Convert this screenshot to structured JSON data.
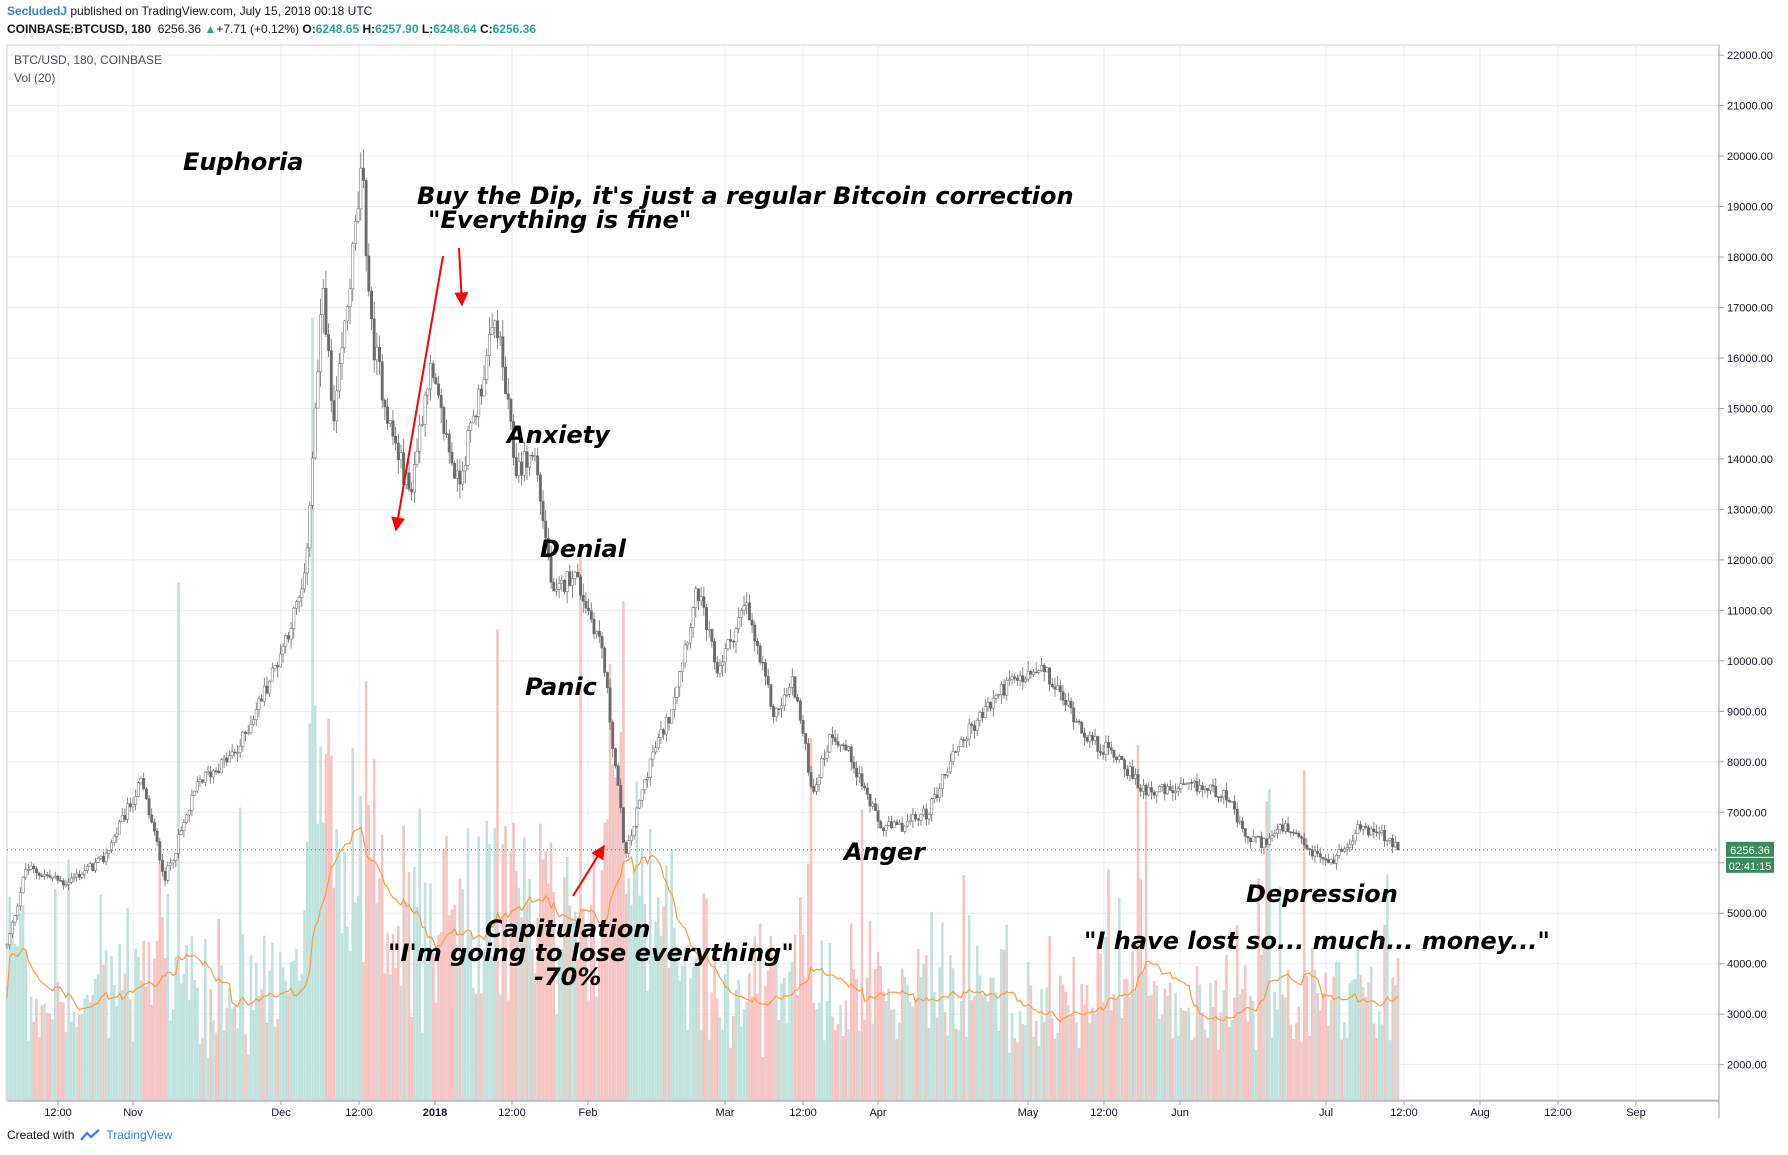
{
  "header": {
    "author": "SecludedJ",
    "published_text": "published on TradingView.com, July 15, 2018 00:18 UTC",
    "symbol": "COINBASE:BTCUSD, 180",
    "last": "6256.36",
    "change": "+7.71 (+0.12%)",
    "o_label": "O:",
    "o_value": "6248.65",
    "h_label": "H:",
    "h_value": "6257.90",
    "l_label": "L:",
    "l_value": "6248.64",
    "c_label": "C:",
    "c_value": "6256.36"
  },
  "legend": {
    "title": "BTC/USD, 180, COINBASE",
    "volume": "Vol (20)"
  },
  "footer": {
    "created_with": "Created with",
    "brand": "TradingView"
  },
  "colors": {
    "up": "#26a69a",
    "down": "#ef5350",
    "candle": "#6b6b6b",
    "volume_ma": "#ff9a3c",
    "arrow": "#ff0000",
    "grid": "#e9eef2",
    "price_badge": "#3a8a5c"
  },
  "chart_data": {
    "type": "candlestick",
    "title": "BTC/USD, 180, COINBASE",
    "y_unit": "USD",
    "ylim": [
      1300,
      22200
    ],
    "y_ticks": [
      "22000.00",
      "21000.00",
      "20000.00",
      "19000.00",
      "18000.00",
      "17000.00",
      "16000.00",
      "15000.00",
      "14000.00",
      "13000.00",
      "12000.00",
      "11000.00",
      "10000.00",
      "9000.00",
      "8000.00",
      "7000.00",
      "6000.00",
      "5000.00",
      "4000.00",
      "3000.00",
      "2000.00"
    ],
    "x_ticks": [
      "12:00",
      "Nov",
      "Dec",
      "12:00",
      "2018",
      "12:00",
      "Feb",
      "Mar",
      "12:00",
      "Apr",
      "May",
      "12:00",
      "Jun",
      "Jul",
      "12:00",
      "Aug",
      "12:00",
      "Sep"
    ],
    "last_price": "6256.36",
    "countdown": "02:41:15",
    "price_path": [
      {
        "t": 0,
        "p": 4350
      },
      {
        "t": 2,
        "p": 5900
      },
      {
        "t": 6,
        "p": 5600
      },
      {
        "t": 10,
        "p": 6050
      },
      {
        "t": 14,
        "p": 7600
      },
      {
        "t": 16.5,
        "p": 5700
      },
      {
        "t": 20,
        "p": 7600
      },
      {
        "t": 24,
        "p": 8200
      },
      {
        "t": 28,
        "p": 9900
      },
      {
        "t": 31,
        "p": 11500
      },
      {
        "t": 33,
        "p": 17500
      },
      {
        "t": 34,
        "p": 14500
      },
      {
        "t": 37,
        "p": 19700
      },
      {
        "t": 38,
        "p": 16500
      },
      {
        "t": 40,
        "p": 14600
      },
      {
        "t": 42,
        "p": 13300
      },
      {
        "t": 44,
        "p": 15800
      },
      {
        "t": 47,
        "p": 13500
      },
      {
        "t": 49,
        "p": 15100
      },
      {
        "t": 51,
        "p": 16800
      },
      {
        "t": 53,
        "p": 13800
      },
      {
        "t": 55,
        "p": 14100
      },
      {
        "t": 57,
        "p": 11200
      },
      {
        "t": 59,
        "p": 11800
      },
      {
        "t": 62,
        "p": 10300
      },
      {
        "t": 64.5,
        "p": 6100
      },
      {
        "t": 67,
        "p": 8000
      },
      {
        "t": 69,
        "p": 8900
      },
      {
        "t": 72,
        "p": 11400
      },
      {
        "t": 74,
        "p": 9800
      },
      {
        "t": 77,
        "p": 11100
      },
      {
        "t": 80,
        "p": 8900
      },
      {
        "t": 82,
        "p": 9600
      },
      {
        "t": 84,
        "p": 7400
      },
      {
        "t": 86,
        "p": 8600
      },
      {
        "t": 88,
        "p": 8100
      },
      {
        "t": 91,
        "p": 6700
      },
      {
        "t": 93,
        "p": 6700
      },
      {
        "t": 96,
        "p": 7000
      },
      {
        "t": 99,
        "p": 8300
      },
      {
        "t": 104,
        "p": 9500
      },
      {
        "t": 108,
        "p": 9800
      },
      {
        "t": 111,
        "p": 9000
      },
      {
        "t": 113,
        "p": 8400
      },
      {
        "t": 116,
        "p": 8100
      },
      {
        "t": 118,
        "p": 7500
      },
      {
        "t": 121,
        "p": 7400
      },
      {
        "t": 124,
        "p": 7500
      },
      {
        "t": 127,
        "p": 7400
      },
      {
        "t": 129,
        "p": 6500
      },
      {
        "t": 131,
        "p": 6400
      },
      {
        "t": 133,
        "p": 6700
      },
      {
        "t": 136,
        "p": 6200
      },
      {
        "t": 138,
        "p": 6000
      },
      {
        "t": 141,
        "p": 6700
      },
      {
        "t": 143,
        "p": 6600
      },
      {
        "t": 145,
        "p": 6256
      }
    ],
    "annotations": [
      {
        "text": "Euphoria"
      },
      {
        "text": "Buy the Dip, it's just a regular Bitcoin correction"
      },
      {
        "text": "\"Everything is fine\""
      },
      {
        "text": "Anxiety"
      },
      {
        "text": "Denial"
      },
      {
        "text": "Panic"
      },
      {
        "text": "Capitulation"
      },
      {
        "text": "\"I'm going to lose everything\""
      },
      {
        "text": "-70%"
      },
      {
        "text": "Anger"
      },
      {
        "text": "Depression"
      },
      {
        "text": "\"I have lost so... much... money...\""
      }
    ]
  }
}
